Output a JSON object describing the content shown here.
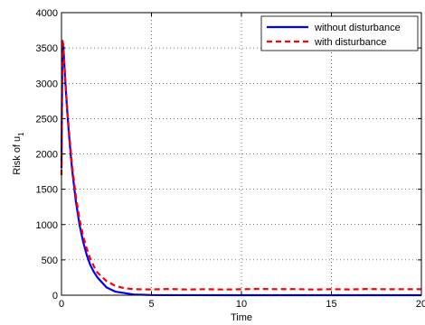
{
  "chart_data": {
    "type": "line",
    "xlabel": "Time",
    "ylabel": "Risk of u",
    "ylabel_subscript": "1",
    "xlim": [
      0,
      20
    ],
    "ylim": [
      0,
      4000
    ],
    "xticks": [
      0,
      5,
      10,
      15,
      20
    ],
    "yticks": [
      0,
      500,
      1000,
      1500,
      2000,
      2500,
      3000,
      3500,
      4000
    ],
    "grid": true,
    "legend_position": "top-right",
    "series": [
      {
        "name": "without disturbance",
        "color": "#0000ff",
        "style": "solid",
        "x": [
          0,
          0.05,
          0.1,
          0.2,
          0.3,
          0.4,
          0.5,
          0.6,
          0.8,
          1.0,
          1.2,
          1.4,
          1.6,
          1.8,
          2.0,
          2.5,
          3.0,
          4.0,
          5,
          10,
          15,
          20
        ],
        "y": [
          1800,
          3600,
          3530,
          3070,
          2670,
          2320,
          2020,
          1760,
          1330,
          1000,
          760,
          570,
          430,
          330,
          250,
          110,
          50,
          10,
          2,
          0,
          0,
          0
        ]
      },
      {
        "name": "with disturbance",
        "color": "#ff0000",
        "style": "dashed",
        "x": [
          0,
          0.05,
          0.1,
          0.2,
          0.3,
          0.4,
          0.5,
          0.6,
          0.8,
          1.0,
          1.2,
          1.4,
          1.6,
          1.8,
          2.0,
          2.5,
          3.0,
          3.5,
          4,
          5,
          6,
          7,
          8,
          9,
          10,
          11,
          12,
          13,
          14,
          15,
          16,
          17,
          18,
          19,
          20
        ],
        "y": [
          1700,
          3610,
          3550,
          3100,
          2710,
          2370,
          2080,
          1820,
          1400,
          1080,
          840,
          660,
          520,
          410,
          320,
          200,
          130,
          100,
          85,
          82,
          88,
          80,
          86,
          81,
          84,
          89,
          85,
          87,
          80,
          85,
          82,
          88,
          84,
          86,
          85
        ]
      }
    ]
  }
}
